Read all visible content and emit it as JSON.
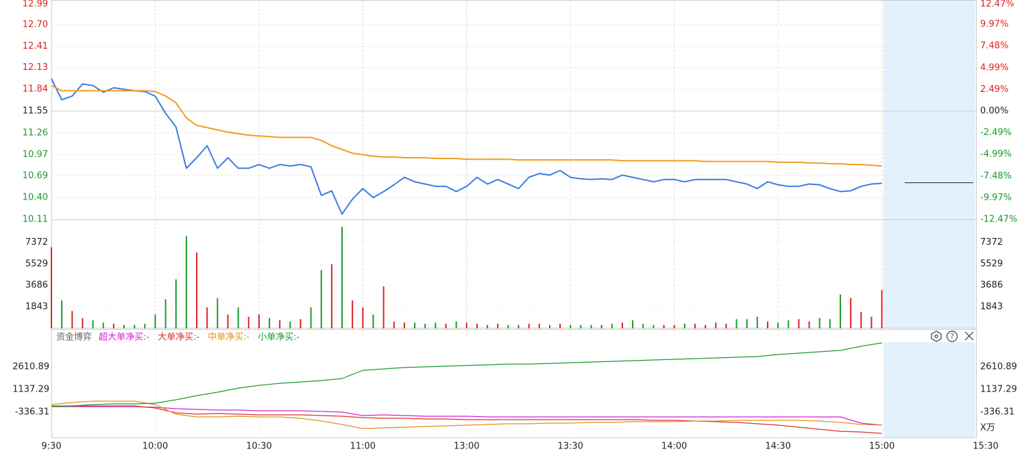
{
  "chart_data": [
    {
      "type": "line",
      "ylim": [
        10.11,
        12.99
      ],
      "yticks": [
        12.99,
        {
          "value": 12.7,
          "label": "12.70"
        },
        12.41,
        12.13,
        11.84,
        11.55,
        11.26,
        10.97,
        10.69,
        {
          "value": 10.4,
          "label": "10.40"
        },
        10.11
      ],
      "y2lim": [
        -12.47,
        12.47
      ],
      "y2ticks": [
        {
          "value": 12.47,
          "label": "12.47%"
        },
        {
          "value": 9.97,
          "label": "9.97%"
        },
        {
          "value": 7.48,
          "label": "7.48%"
        },
        {
          "value": 4.99,
          "label": "4.99%"
        },
        {
          "value": 2.49,
          "label": "2.49%"
        },
        {
          "value": 0,
          "label": "0.00%"
        },
        {
          "value": -2.49,
          "label": "-2.49%"
        },
        {
          "value": -4.99,
          "label": "-4.99%"
        },
        {
          "value": -7.48,
          "label": "-7.48%"
        },
        {
          "value": -9.97,
          "label": "-9.97%"
        },
        {
          "value": -12.47,
          "label": "-12.47%"
        }
      ],
      "up_color": "#e02020",
      "down_color": "#1a9a2a",
      "grid": true,
      "x": [
        0,
        3,
        6,
        9,
        12,
        15,
        18,
        21,
        24,
        27,
        30,
        33,
        36,
        39,
        42,
        45,
        48,
        51,
        54,
        57,
        60,
        63,
        66,
        69,
        72,
        75,
        78,
        81,
        84,
        87,
        90,
        93,
        96,
        99,
        102,
        105,
        108,
        111,
        114,
        117,
        120,
        123,
        126,
        129,
        132,
        135,
        138,
        141,
        144,
        147,
        150,
        153,
        156,
        159,
        162,
        165,
        168,
        171,
        174,
        177,
        180,
        183,
        186,
        189,
        192,
        195,
        198,
        201,
        204,
        207,
        210,
        213,
        216,
        219,
        222,
        225,
        228,
        231,
        234,
        237,
        240
      ],
      "series": [
        {
          "color": "#3d7be6",
          "values": [
            11.98,
            11.7,
            11.75,
            11.91,
            11.89,
            11.8,
            11.86,
            11.84,
            11.82,
            11.81,
            11.75,
            11.52,
            11.34,
            10.79,
            10.93,
            11.09,
            10.79,
            10.93,
            10.79,
            10.79,
            10.84,
            10.79,
            10.84,
            10.82,
            10.84,
            10.81,
            10.43,
            10.49,
            10.18,
            10.38,
            10.52,
            10.4,
            10.48,
            10.57,
            10.67,
            10.61,
            10.58,
            10.55,
            10.55,
            10.48,
            10.55,
            10.67,
            10.58,
            10.64,
            10.58,
            10.52,
            10.67,
            10.72,
            10.7,
            10.76,
            10.67,
            10.65,
            10.64,
            10.65,
            10.64,
            10.7,
            10.67,
            10.64,
            10.61,
            10.64,
            10.64,
            10.61,
            10.64,
            10.64,
            10.64,
            10.64,
            10.61,
            10.58,
            10.52,
            10.61,
            10.57,
            10.55,
            10.55,
            10.58,
            10.57,
            10.52,
            10.48,
            10.49,
            10.55,
            10.58,
            10.59
          ]
        },
        {
          "color": "#f39c1e",
          "values": [
            11.89,
            11.82,
            11.82,
            11.82,
            11.82,
            11.82,
            11.82,
            11.82,
            11.82,
            11.82,
            11.81,
            11.75,
            11.66,
            11.46,
            11.36,
            11.33,
            11.3,
            11.27,
            11.25,
            11.23,
            11.22,
            11.21,
            11.2,
            11.2,
            11.2,
            11.2,
            11.16,
            11.09,
            11.04,
            10.99,
            10.97,
            10.95,
            10.94,
            10.94,
            10.93,
            10.93,
            10.93,
            10.92,
            10.92,
            10.92,
            10.91,
            10.91,
            10.91,
            10.91,
            10.91,
            10.9,
            10.9,
            10.9,
            10.9,
            10.9,
            10.9,
            10.9,
            10.9,
            10.9,
            10.9,
            10.89,
            10.89,
            10.89,
            10.89,
            10.89,
            10.89,
            10.89,
            10.89,
            10.88,
            10.88,
            10.88,
            10.88,
            10.88,
            10.88,
            10.88,
            10.87,
            10.87,
            10.87,
            10.86,
            10.86,
            10.85,
            10.85,
            10.84,
            10.84,
            10.83,
            10.82
          ]
        }
      ]
    },
    {
      "type": "bar",
      "ylim": [
        0,
        9215
      ],
      "yticks": [
        1843,
        3686,
        5529,
        7372
      ],
      "x": [
        0,
        3,
        6,
        9,
        12,
        15,
        18,
        21,
        24,
        27,
        30,
        33,
        36,
        39,
        42,
        45,
        48,
        51,
        54,
        57,
        60,
        63,
        66,
        69,
        72,
        75,
        78,
        81,
        84,
        87,
        90,
        93,
        96,
        99,
        102,
        105,
        108,
        111,
        114,
        117,
        120,
        123,
        126,
        129,
        132,
        135,
        138,
        141,
        144,
        147,
        150,
        153,
        156,
        159,
        162,
        165,
        168,
        171,
        174,
        177,
        180,
        183,
        186,
        189,
        192,
        195,
        198,
        201,
        204,
        207,
        210,
        213,
        216,
        219,
        222,
        225,
        228,
        231,
        234,
        237,
        240
      ],
      "values": [
        6960,
        2400,
        1500,
        900,
        700,
        500,
        400,
        300,
        300,
        400,
        1200,
        2500,
        4200,
        7900,
        6500,
        1800,
        2600,
        1200,
        1800,
        1000,
        1200,
        900,
        700,
        600,
        800,
        1800,
        5000,
        5500,
        8700,
        2400,
        1800,
        1200,
        3600,
        600,
        500,
        500,
        400,
        500,
        400,
        600,
        500,
        400,
        300,
        400,
        300,
        300,
        400,
        400,
        300,
        400,
        300,
        300,
        300,
        300,
        400,
        500,
        700,
        400,
        300,
        300,
        300,
        400,
        400,
        300,
        500,
        400,
        800,
        800,
        1000,
        600,
        500,
        700,
        800,
        600,
        900,
        800,
        2900,
        2600,
        1400,
        1000,
        3300
      ]
    },
    {
      "type": "line",
      "title": "资金博弈",
      "y2_label": "X万",
      "ylim": [
        -1988,
        5066
      ],
      "yticks": [
        2610.89,
        1137.29,
        -336.31
      ],
      "xlim": [
        0,
        270
      ],
      "xticks": [
        {
          "value": 0,
          "label": "9:30"
        },
        {
          "value": 30,
          "label": "10:00"
        },
        {
          "value": 60,
          "label": "10:30"
        },
        {
          "value": 90,
          "label": "11:00"
        },
        {
          "value": 120,
          "label": "13:00"
        },
        {
          "value": 150,
          "label": "13:30"
        },
        {
          "value": 180,
          "label": "14:00"
        },
        {
          "value": 210,
          "label": "14:30"
        },
        {
          "value": 240,
          "label": "15:00"
        },
        {
          "value": 270,
          "label": "15:30"
        }
      ],
      "x": [
        0,
        6,
        12,
        18,
        24,
        30,
        36,
        42,
        48,
        54,
        60,
        66,
        72,
        78,
        84,
        90,
        96,
        102,
        108,
        114,
        120,
        126,
        132,
        138,
        144,
        150,
        156,
        162,
        168,
        174,
        180,
        186,
        192,
        198,
        204,
        210,
        216,
        222,
        228,
        234,
        240
      ],
      "series": [
        {
          "name": "超大单净买:-",
          "color": "#d61fd6",
          "values": [
            21,
            21,
            21,
            21,
            21,
            -23,
            -113,
            -158,
            -202,
            -202,
            -247,
            -247,
            -247,
            -291,
            -336,
            -560,
            -515,
            -560,
            -604,
            -604,
            -604,
            -649,
            -649,
            -649,
            -649,
            -649,
            -649,
            -649,
            -649,
            -649,
            -649,
            -649,
            -649,
            -649,
            -649,
            -649,
            -649,
            -649,
            -649,
            -1050,
            -1184
          ]
        },
        {
          "name": "大单净买:-",
          "color": "#d9312c",
          "values": [
            66,
            66,
            66,
            66,
            66,
            -68,
            -381,
            -470,
            -426,
            -470,
            -515,
            -515,
            -515,
            -560,
            -604,
            -693,
            -738,
            -738,
            -782,
            -782,
            -827,
            -827,
            -827,
            -827,
            -827,
            -827,
            -827,
            -827,
            -827,
            -872,
            -872,
            -917,
            -961,
            -1006,
            -1095,
            -1184,
            -1318,
            -1452,
            -1586,
            -1631,
            -1720
          ]
        },
        {
          "name": "中单净买:-",
          "color": "#e0921a",
          "values": [
            155,
            289,
            378,
            378,
            378,
            155,
            -470,
            -649,
            -649,
            -604,
            -649,
            -649,
            -738,
            -917,
            -1140,
            -1408,
            -1363,
            -1318,
            -1274,
            -1229,
            -1184,
            -1140,
            -1095,
            -1095,
            -1050,
            -1050,
            -1006,
            -1006,
            -961,
            -961,
            -961,
            -917,
            -917,
            -872,
            -872,
            -872,
            -872,
            -917,
            -1006,
            -1140,
            -1184
          ]
        },
        {
          "name": "小单净买:-",
          "color": "#1a9a2a",
          "values": [
            21,
            66,
            155,
            200,
            200,
            244,
            468,
            736,
            959,
            1227,
            1405,
            1539,
            1629,
            1718,
            1852,
            2388,
            2477,
            2566,
            2611,
            2655,
            2700,
            2745,
            2790,
            2790,
            2834,
            2879,
            2923,
            2968,
            3013,
            3057,
            3102,
            3147,
            3191,
            3236,
            3281,
            3415,
            3504,
            3593,
            3683,
            3950,
            4174
          ]
        }
      ]
    }
  ]
}
